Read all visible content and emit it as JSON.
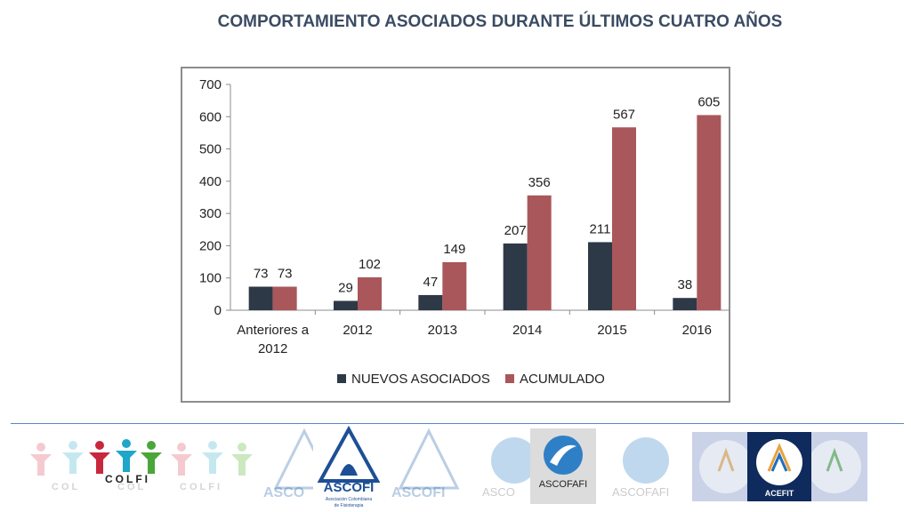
{
  "page": {
    "title": "COMPORTAMIENTO ASOCIADOS DURANTE ÚLTIMOS CUATRO AÑOS"
  },
  "chart_data": {
    "type": "bar",
    "categories": [
      "Anteriores a 2012",
      "2012",
      "2013",
      "2014",
      "2015",
      "2016"
    ],
    "category_lines": [
      [
        "Anteriores a",
        "2012"
      ],
      [
        "2012"
      ],
      [
        "2013"
      ],
      [
        "2014"
      ],
      [
        "2015"
      ],
      [
        "2016"
      ]
    ],
    "series": [
      {
        "name": "NUEVOS ASOCIADOS",
        "values": [
          73,
          29,
          47,
          207,
          211,
          38
        ],
        "color": "#2e3947"
      },
      {
        "name": "ACUMULADO",
        "values": [
          73,
          102,
          149,
          356,
          567,
          605
        ],
        "color": "#a9575a"
      }
    ],
    "title": "",
    "xlabel": "",
    "ylabel": "",
    "ylim": [
      0,
      700
    ],
    "yticks": [
      0,
      100,
      200,
      300,
      400,
      500,
      600,
      700
    ],
    "grid": false,
    "data_labels": true,
    "legend_position": "bottom"
  },
  "logos": {
    "colfi": {
      "text": "COLFI",
      "echo": "COL"
    },
    "ascofi": {
      "name": "ASCOFI",
      "subtitle": "Asociación Colombiana de Fisioterapia"
    },
    "ascofafi": {
      "name": "ASCOFAFI"
    },
    "acefit": {
      "name": "ACEFIT"
    }
  }
}
